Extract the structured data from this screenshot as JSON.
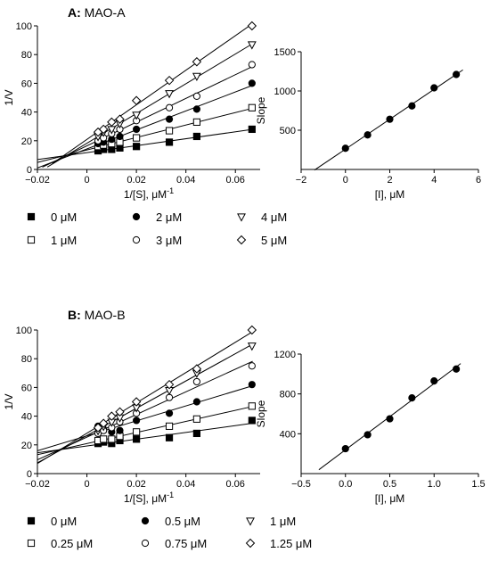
{
  "chart_data": [
    {
      "panel": "A",
      "type": "scatter",
      "title": "MAO-A",
      "title_prefix": "A:",
      "plots": [
        {
          "kind": "lineweaver-burk",
          "xlabel": "1/[S], μM",
          "xlabel_sup": "-1",
          "ylabel": "1/V",
          "xlim": [
            -0.02,
            0.07
          ],
          "ylim": [
            0,
            100
          ],
          "xticks": [
            -0.02,
            0,
            0.02,
            0.04,
            0.06
          ],
          "xtick_labels": [
            "−0.02",
            "0",
            "0.02",
            "0.04",
            "0.06"
          ],
          "yticks": [
            0,
            20,
            40,
            60,
            80,
            100
          ],
          "ytick_labels": [
            "0",
            "20",
            "40",
            "60",
            "80",
            "100"
          ],
          "x": [
            0.0045,
            0.0067,
            0.01,
            0.0133,
            0.02,
            0.0333,
            0.0444,
            0.0667
          ],
          "series": [
            {
              "name": "0 μM",
              "marker": "square-filled",
              "values": [
                13,
                14,
                14,
                15,
                16,
                19,
                23,
                28
              ],
              "fit_extent": [
                -0.02,
                0.067
              ]
            },
            {
              "name": "1 μM",
              "marker": "square-open",
              "values": [
                16,
                17,
                18,
                19,
                22,
                27,
                33,
                43
              ],
              "fit_extent": [
                -0.02,
                0.067
              ]
            },
            {
              "name": "2 μM",
              "marker": "circle-filled",
              "values": [
                18,
                19,
                21,
                23,
                28,
                35,
                42,
                60
              ],
              "fit_extent": [
                -0.02,
                0.067
              ]
            },
            {
              "name": "3 μM",
              "marker": "circle-open",
              "values": [
                20,
                22,
                25,
                28,
                34,
                43,
                51,
                73
              ],
              "fit_extent": [
                -0.018,
                0.067
              ]
            },
            {
              "name": "4 μM",
              "marker": "triangle-down-open",
              "values": [
                23,
                26,
                28,
                32,
                38,
                53,
                65,
                87
              ],
              "fit_extent": [
                -0.016,
                0.067
              ]
            },
            {
              "name": "5 μM",
              "marker": "diamond-open",
              "values": [
                26,
                28,
                33,
                35,
                48,
                62,
                75,
                100
              ],
              "fit_extent": [
                -0.014,
                0.067
              ]
            }
          ]
        },
        {
          "kind": "replot",
          "xlabel": "[I], μM",
          "ylabel": "Slope",
          "xlim": [
            -2,
            6
          ],
          "ylim": [
            0,
            1500
          ],
          "xticks": [
            -2,
            0,
            2,
            4,
            6
          ],
          "xtick_labels": [
            "−2",
            "0",
            "2",
            "4",
            "6"
          ],
          "yticks": [
            500,
            1000,
            1500
          ],
          "ytick_labels": [
            "500",
            "1000",
            "1500"
          ],
          "x": [
            0,
            1,
            2,
            3,
            4,
            5
          ],
          "values": [
            270,
            440,
            640,
            810,
            1040,
            1210
          ],
          "fit_extent": [
            -1.4,
            5.3
          ]
        }
      ]
    },
    {
      "panel": "B",
      "type": "scatter",
      "title": "MAO-B",
      "title_prefix": "B:",
      "plots": [
        {
          "kind": "lineweaver-burk",
          "xlabel": "1/[S], μM",
          "xlabel_sup": "-1",
          "ylabel": "1/V",
          "xlim": [
            -0.02,
            0.07
          ],
          "ylim": [
            0,
            100
          ],
          "xticks": [
            -0.02,
            0,
            0.02,
            0.04,
            0.06
          ],
          "xtick_labels": [
            "−0.02",
            "0",
            "0.02",
            "0.04",
            "0.06"
          ],
          "yticks": [
            0,
            20,
            40,
            60,
            80,
            100
          ],
          "ytick_labels": [
            "0",
            "20",
            "40",
            "60",
            "80",
            "100"
          ],
          "x": [
            0.0045,
            0.0067,
            0.01,
            0.0133,
            0.02,
            0.0333,
            0.0444,
            0.0667
          ],
          "series": [
            {
              "name": "0 μM",
              "marker": "square-filled",
              "values": [
                21,
                22,
                21,
                23,
                24,
                25,
                28,
                37
              ],
              "fit_extent": [
                -0.02,
                0.067
              ]
            },
            {
              "name": "0.25 μM",
              "marker": "square-open",
              "values": [
                23,
                24,
                24,
                26,
                29,
                33,
                38,
                47
              ],
              "fit_extent": [
                -0.02,
                0.067
              ]
            },
            {
              "name": "0.5 μM",
              "marker": "circle-filled",
              "values": [
                33,
                31,
                29,
                30,
                37,
                42,
                50,
                62
              ],
              "fit_extent": [
                -0.02,
                0.067
              ]
            },
            {
              "name": "0.75 μM",
              "marker": "circle-open",
              "values": [
                28,
                30,
                32,
                36,
                42,
                53,
                64,
                75
              ],
              "fit_extent": [
                -0.02,
                0.067
              ]
            },
            {
              "name": "1 μM",
              "marker": "triangle-down-open",
              "values": [
                30,
                33,
                36,
                39,
                46,
                58,
                70,
                89
              ],
              "fit_extent": [
                -0.02,
                0.067
              ]
            },
            {
              "name": "1.25 μM",
              "marker": "diamond-open",
              "values": [
                32,
                35,
                40,
                43,
                50,
                62,
                73,
                100
              ],
              "fit_extent": [
                -0.02,
                0.067
              ]
            }
          ]
        },
        {
          "kind": "replot",
          "xlabel": "[I], μM",
          "ylabel": "Slope",
          "xlim": [
            -0.5,
            1.5
          ],
          "ylim": [
            0,
            1200
          ],
          "xticks": [
            -0.5,
            0,
            0.5,
            1,
            1.5
          ],
          "xtick_labels": [
            "−0.5",
            "0.0",
            "0.5",
            "1.0",
            "1.5"
          ],
          "yticks": [
            400,
            800,
            1200
          ],
          "ytick_labels": [
            "400",
            "800",
            "1200"
          ],
          "x": [
            0,
            0.25,
            0.5,
            0.75,
            1,
            1.25
          ],
          "values": [
            250,
            390,
            550,
            760,
            930,
            1050
          ],
          "fit_extent": [
            -0.3,
            1.3
          ]
        }
      ]
    }
  ]
}
